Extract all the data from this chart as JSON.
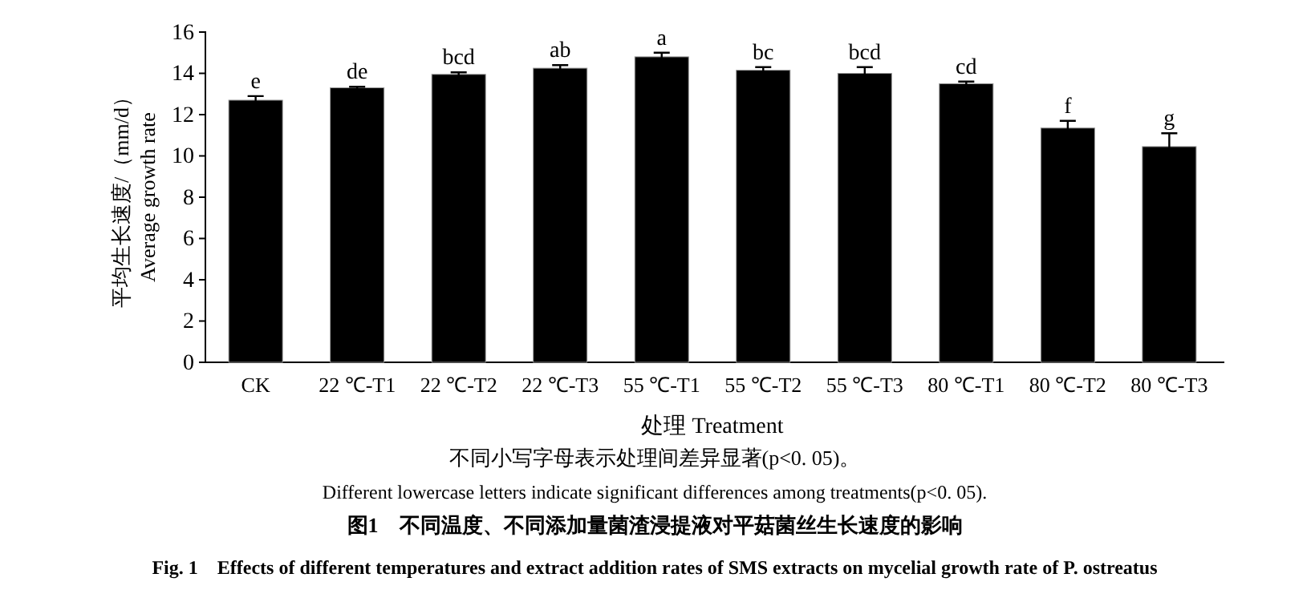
{
  "chart_data": {
    "type": "bar",
    "xlabel": "处理  Treatment",
    "ylabel": "平均生长速度/（mm/d）\nAverage growth rate",
    "categories": [
      "CK",
      "22 ℃-T1",
      "22 ℃-T2",
      "22 ℃-T3",
      "55 ℃-T1",
      "55 ℃-T2",
      "55 ℃-T3",
      "80 ℃-T1",
      "80 ℃-T2",
      "80 ℃-T3"
    ],
    "values": [
      12.7,
      13.3,
      13.95,
      14.25,
      14.8,
      14.15,
      14.0,
      13.5,
      11.35,
      10.45
    ],
    "errors": [
      0.2,
      0.05,
      0.1,
      0.15,
      0.2,
      0.15,
      0.3,
      0.1,
      0.35,
      0.65
    ],
    "color": "#000000",
    "ylim": [
      0,
      16
    ],
    "yticks": [
      0,
      2,
      4,
      6,
      8,
      10,
      12,
      14,
      16
    ],
    "grid": false,
    "annotations": [
      {
        "text": "e",
        "x": "CK",
        "y": 12.9
      },
      {
        "text": "de",
        "x": "22 ℃-T1",
        "y": 13.35
      },
      {
        "text": "bcd",
        "x": "22 ℃-T2",
        "y": 14.05
      },
      {
        "text": "ab",
        "x": "22 ℃-T3",
        "y": 14.4
      },
      {
        "text": "a",
        "x": "55 ℃-T1",
        "y": 15.0
      },
      {
        "text": "bc",
        "x": "55 ℃-T2",
        "y": 14.3
      },
      {
        "text": "bcd",
        "x": "55 ℃-T3",
        "y": 14.3
      },
      {
        "text": "cd",
        "x": "80 ℃-T1",
        "y": 13.6
      },
      {
        "text": "f",
        "x": "80 ℃-T2",
        "y": 11.7
      },
      {
        "text": "g",
        "x": "80 ℃-T3",
        "y": 11.1
      },
      "不同小写字母表示处理间差异显著(p<0. 05)。",
      "Different lowercase letters indicate significant differences among treatments(p<0. 05).",
      "图1　不同温度、不同添加量菌渣浸提液对平菇菌丝生长速度的影响",
      "Fig. 1　Effects of different temperatures and extract addition rates of SMS extracts on mycelial growth rate of P. ostreatus"
    ]
  }
}
